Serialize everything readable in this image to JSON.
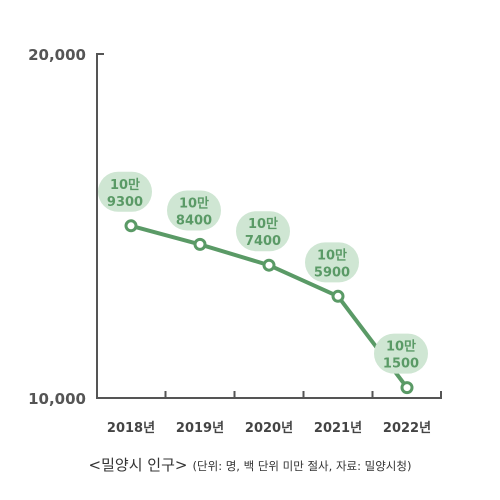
{
  "chart_data": {
    "type": "line",
    "title": "",
    "xlabel": "",
    "ylabel": "",
    "categories": [
      "2018년",
      "2019년",
      "2020년",
      "2021년",
      "2022년"
    ],
    "series": [
      {
        "values": [
          109300,
          108400,
          107400,
          105900,
          101500
        ],
        "labels": [
          [
            "10만",
            "9300"
          ],
          [
            "10만",
            "8400"
          ],
          [
            "10만",
            "7400"
          ],
          [
            "10만",
            "5900"
          ],
          [
            "10만",
            "1500"
          ]
        ],
        "color": "#5a9a66"
      }
    ],
    "yticks": [
      "20,000",
      "10,000"
    ],
    "grid": false,
    "legend": "none"
  },
  "caption": {
    "main": "<밀양시 인구>",
    "note": "(단위: 명, 백 단위 미만 절사, 자료: 밀양시청)"
  }
}
